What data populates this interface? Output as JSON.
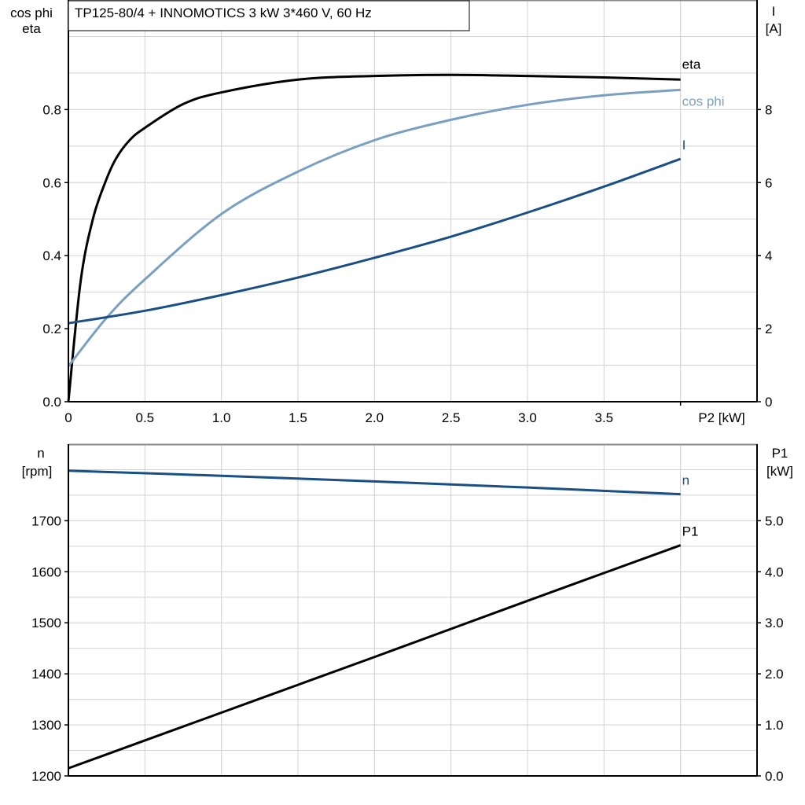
{
  "chart_data": [
    {
      "type": "line",
      "title": "TP125-80/4 + INNOMOTICS   3 kW   3*460 V, 60 Hz",
      "xlabel": "P2 [kW]",
      "xlim": [
        0,
        4.5
      ],
      "xticks": [
        "0",
        "0.5",
        "1.0",
        "1.5",
        "2.0",
        "2.5",
        "3.0",
        "3.5"
      ],
      "xtick_values": [
        0,
        0.5,
        1.0,
        1.5,
        2.0,
        2.5,
        3.0,
        3.5
      ],
      "ylabel_left": [
        "cos phi",
        "eta"
      ],
      "ylim_left": [
        0,
        1.1
      ],
      "yticks_left": [
        "0.0",
        "0.2",
        "0.4",
        "0.6",
        "0.8"
      ],
      "ytick_values_left": [
        0,
        0.2,
        0.4,
        0.6,
        0.8
      ],
      "ylabel_right": [
        "I",
        "[A]"
      ],
      "ylim_right": [
        0,
        11
      ],
      "yticks_right": [
        "0",
        "2",
        "4",
        "6",
        "8"
      ],
      "ytick_values_right": [
        0,
        2,
        4,
        6,
        8
      ],
      "grid": true,
      "series": [
        {
          "name": "eta",
          "axis": "left",
          "color": "#000000",
          "x": [
            0,
            0.08,
            0.16,
            0.24,
            0.31,
            0.4,
            0.5,
            0.75,
            1.0,
            1.5,
            2.0,
            2.5,
            3.0,
            3.5,
            4.0
          ],
          "y": [
            0,
            0.33,
            0.5,
            0.6,
            0.665,
            0.716,
            0.75,
            0.815,
            0.847,
            0.882,
            0.892,
            0.895,
            0.892,
            0.888,
            0.882
          ]
        },
        {
          "name": "cos phi",
          "axis": "left",
          "color": "#7a9fc0",
          "x": [
            0,
            0.25,
            0.5,
            1.0,
            1.5,
            2.0,
            2.5,
            3.0,
            3.5,
            4.0
          ],
          "y": [
            0.097,
            0.23,
            0.335,
            0.514,
            0.63,
            0.716,
            0.772,
            0.813,
            0.839,
            0.854
          ]
        },
        {
          "name": "I",
          "axis": "right",
          "color": "#1a4f85",
          "x": [
            0,
            0.5,
            1.0,
            1.5,
            2.0,
            2.5,
            3.0,
            3.5,
            4.0
          ],
          "y": [
            2.15,
            2.49,
            2.92,
            3.4,
            3.94,
            4.52,
            5.18,
            5.89,
            6.65
          ]
        }
      ]
    },
    {
      "type": "line",
      "xlim": [
        0,
        4.5
      ],
      "ylabel_left": [
        "n",
        "[rpm]"
      ],
      "ylim_left": [
        1200,
        1850
      ],
      "yticks_left": [
        "1200",
        "1300",
        "1400",
        "1500",
        "1600",
        "1700"
      ],
      "ytick_values_left": [
        1200,
        1300,
        1400,
        1500,
        1600,
        1700
      ],
      "ylabel_right": [
        "P1",
        "[kW]"
      ],
      "ylim_right": [
        0,
        6.5
      ],
      "yticks_right": [
        "0.0",
        "1.0",
        "2.0",
        "3.0",
        "4.0",
        "5.0"
      ],
      "ytick_values_right": [
        0,
        1,
        2,
        3,
        4,
        5
      ],
      "grid": true,
      "series": [
        {
          "name": "n",
          "axis": "left",
          "color": "#1a4f85",
          "x": [
            0,
            1.0,
            2.0,
            3.0,
            4.0
          ],
          "y": [
            1798,
            1788,
            1777,
            1765,
            1752
          ]
        },
        {
          "name": "P1",
          "axis": "right",
          "color": "#000000",
          "x": [
            0,
            1.0,
            2.0,
            3.0,
            4.0
          ],
          "y": [
            0.15,
            1.24,
            2.33,
            3.43,
            4.52
          ]
        }
      ]
    }
  ]
}
